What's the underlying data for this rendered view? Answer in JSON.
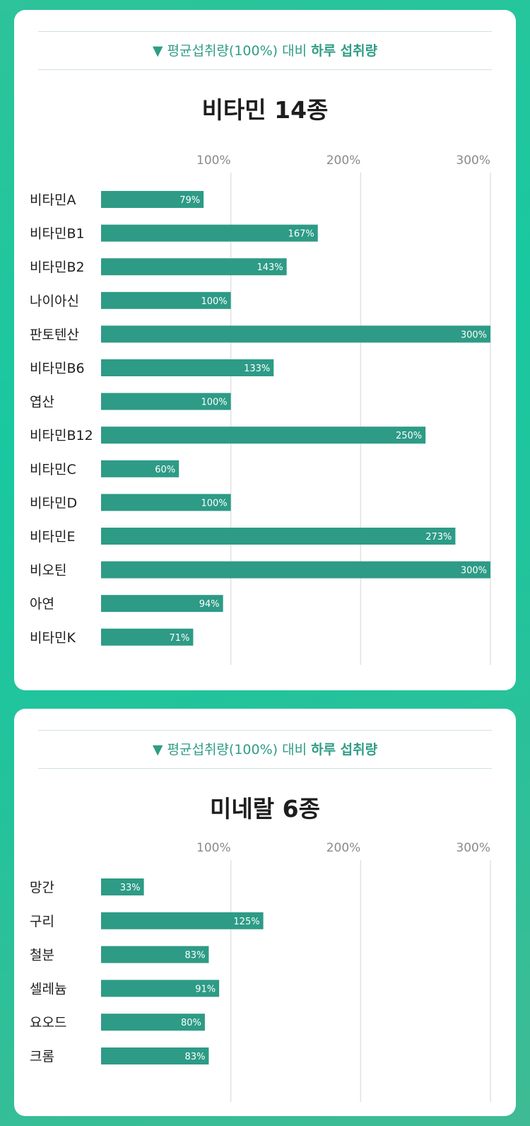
{
  "colors": {
    "bar": "#2d9b86",
    "grid": "#e2e2e2",
    "accent": "#2f9c86"
  },
  "chart_data": [
    {
      "type": "bar",
      "orientation": "horizontal",
      "heading": "▼ 평균섭취량(100%) 대비",
      "heading_bold": "하루 섭취량",
      "title": "비타민 14종",
      "xlim": [
        0,
        300
      ],
      "xticks": [
        100,
        200,
        300
      ],
      "xtick_labels": [
        "100%",
        "200%",
        "300%"
      ],
      "grid": true,
      "categories": [
        "비타민A",
        "비타민B1",
        "비타민B2",
        "나이아신",
        "판토텐산",
        "비타민B6",
        "엽산",
        "비타민B12",
        "비타민C",
        "비타민D",
        "비타민E",
        "비오틴",
        "아연",
        "비타민K"
      ],
      "values": [
        79,
        167,
        143,
        100,
        300,
        133,
        100,
        250,
        60,
        100,
        273,
        300,
        94,
        71
      ],
      "value_labels": [
        "79%",
        "167%",
        "143%",
        "100%",
        "300%",
        "133%",
        "100%",
        "250%",
        "60%",
        "100%",
        "273%",
        "300%",
        "94%",
        "71%"
      ]
    },
    {
      "type": "bar",
      "orientation": "horizontal",
      "heading": "▼ 평균섭취량(100%) 대비",
      "heading_bold": "하루 섭취량",
      "title": "미네랄 6종",
      "xlim": [
        0,
        300
      ],
      "xticks": [
        100,
        200,
        300
      ],
      "xtick_labels": [
        "100%",
        "200%",
        "300%"
      ],
      "grid": true,
      "categories": [
        "망간",
        "구리",
        "철분",
        "셀레늄",
        "요오드",
        "크롬"
      ],
      "values": [
        33,
        125,
        83,
        91,
        80,
        83
      ],
      "value_labels": [
        "33%",
        "125%",
        "83%",
        "91%",
        "80%",
        "83%"
      ]
    }
  ]
}
